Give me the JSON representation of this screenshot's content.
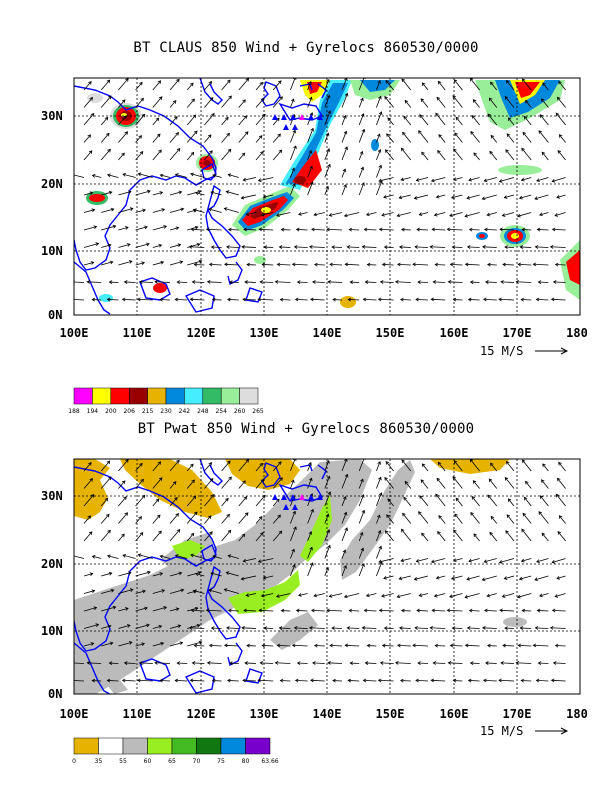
{
  "panel_top": {
    "title": "BT CLAUS 850 Wind + Gyrelocs 860530/0000",
    "x_ticks": [
      "100E",
      "110E",
      "120E",
      "130E",
      "140E",
      "150E",
      "160E",
      "170E",
      "180"
    ],
    "y_ticks": [
      "30N",
      "20N",
      "10N",
      "0N"
    ],
    "scale_label": "15 M/S",
    "legend_values": [
      "188",
      "194",
      "200",
      "206",
      "215",
      "230",
      "242",
      "248",
      "254",
      "260",
      "265"
    ],
    "legend_colors": [
      "#ff00ff",
      "#ffff00",
      "#ff0000",
      "#990000",
      "#e6b400",
      "#0088dd",
      "#44eeff",
      "#33bb66",
      "#99ee99",
      "#dddddd"
    ]
  },
  "panel_bottom": {
    "title": "BT Pwat 850 Wind + Gyrelocs 860530/0000",
    "x_ticks": [
      "100E",
      "110E",
      "120E",
      "130E",
      "140E",
      "150E",
      "160E",
      "170E",
      "180"
    ],
    "y_ticks": [
      "30N",
      "20N",
      "10N",
      "0N"
    ],
    "scale_label": "15 M/S",
    "legend_values": [
      "0",
      "35",
      "55",
      "60",
      "65",
      "70",
      "75",
      "80",
      "63.66"
    ],
    "legend_colors": [
      "#e6b400",
      "#ffffff",
      "#bbbbbb",
      "#99ee22",
      "#44bb22",
      "#117711",
      "#0088dd",
      "#7700cc"
    ]
  },
  "map_extent": {
    "lon": [
      100,
      180
    ],
    "lat": [
      0,
      35
    ]
  },
  "colors": {
    "coast": "#0000ff",
    "gyre_marker": "#0000ff",
    "gyre_center": "#ff00ff"
  }
}
